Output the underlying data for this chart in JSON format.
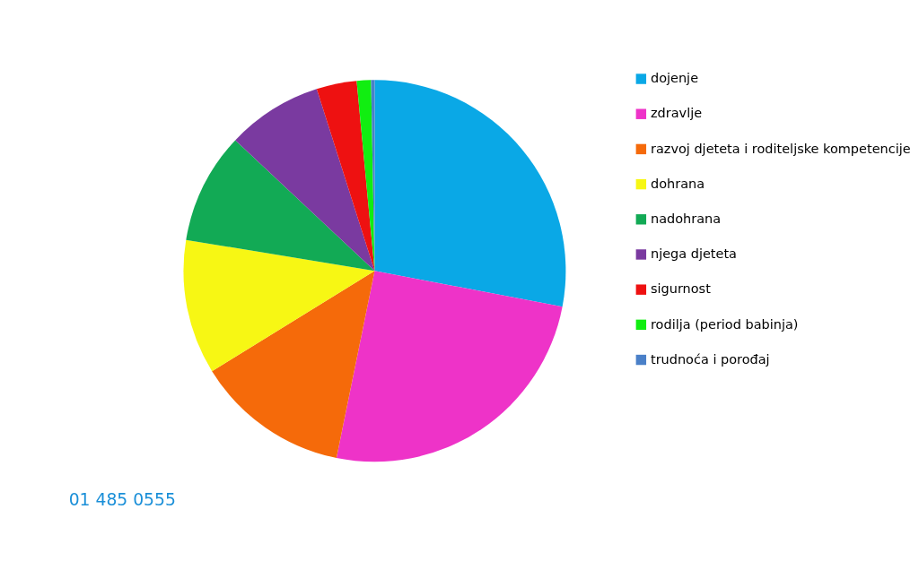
{
  "chart_data": {
    "type": "pie",
    "categories": [
      "dojenje",
      "zdravlje",
      "razvoj djeteta i roditeljske kompetencije",
      "dohrana",
      "nadohrana",
      "njega djeteta",
      "sigurnost",
      "rodilja (period babinja)",
      "trudnoća i porođaj"
    ],
    "values": [
      28.0,
      25.2,
      13.0,
      11.4,
      9.4,
      8.1,
      3.4,
      1.2,
      0.3
    ],
    "colors": [
      "#0aa8e6",
      "#ee33c8",
      "#f56a0a",
      "#f7f714",
      "#12aa55",
      "#7a3aa0",
      "#ee1111",
      "#11ee11",
      "#4a80c8"
    ],
    "legend": "right",
    "annotations": [
      "01 485 0555"
    ]
  }
}
